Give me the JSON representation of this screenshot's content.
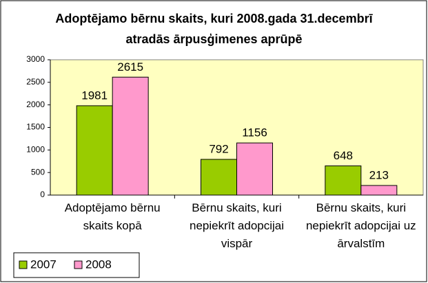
{
  "chart_data": {
    "type": "bar",
    "title": "Adoptējamo bērnu skaits, kuri 2008.gada 31.decembrī atradās ārpusģimenes aprūpē",
    "categories": [
      "Adoptējamo bērnu skaits kopā",
      "Bērnu skaits, kuri nepiekrīt adopcijai vispār",
      "Bērnu skaits, kuri nepiekrīt adopcijai uz ārvalstīm"
    ],
    "series": [
      {
        "name": "2007",
        "color": "#99cc00",
        "values": [
          1981,
          792,
          648
        ]
      },
      {
        "name": "2008",
        "color": "#ff99cc",
        "values": [
          2615,
          1156,
          213
        ]
      }
    ],
    "ylim": [
      0,
      3000
    ],
    "yticks": [
      0,
      500,
      1000,
      1500,
      2000,
      2500,
      3000
    ],
    "grid": false,
    "legend": "bottom-left"
  }
}
